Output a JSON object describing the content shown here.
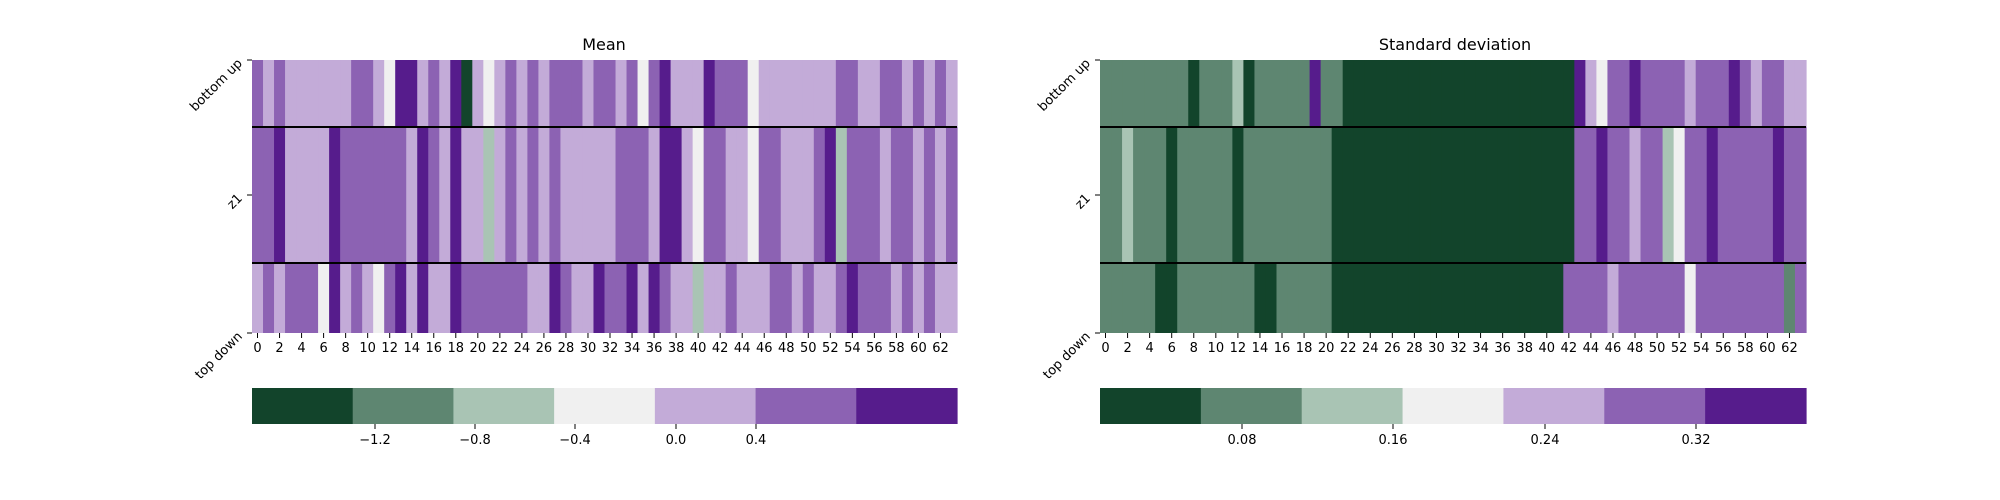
{
  "chart_data": [
    {
      "type": "heatmap",
      "title": "Mean",
      "rows": [
        "bottom up",
        "z1",
        "top down"
      ],
      "x_ticks": [
        0,
        2,
        4,
        6,
        8,
        10,
        12,
        14,
        16,
        18,
        20,
        22,
        24,
        26,
        28,
        30,
        32,
        34,
        36,
        38,
        40,
        42,
        44,
        46,
        48,
        50,
        52,
        54,
        56,
        58,
        60,
        62
      ],
      "level_colors": [
        "#12442b",
        "#5e8671",
        "#a9c4b4",
        "#f0f0f0",
        "#c3abd8",
        "#8c62b3",
        "#561c8c"
      ],
      "levels": [
        [
          5,
          4,
          5,
          4,
          4,
          4,
          4,
          4,
          4,
          5,
          5,
          4,
          3,
          6,
          6,
          4,
          5,
          4,
          6,
          0,
          4,
          3,
          4,
          5,
          4,
          5,
          4,
          5,
          5,
          5,
          4,
          5,
          5,
          4,
          5,
          3,
          5,
          6,
          4,
          4,
          4,
          6,
          5,
          5,
          5,
          3,
          4,
          4,
          4,
          4,
          4,
          4,
          4,
          5,
          5,
          4,
          4,
          5,
          5,
          4,
          5,
          4,
          5,
          4
        ],
        [
          5,
          5,
          6,
          4,
          4,
          4,
          4,
          6,
          5,
          5,
          5,
          5,
          5,
          5,
          4,
          6,
          5,
          4,
          6,
          4,
          4,
          2,
          4,
          5,
          4,
          5,
          4,
          5,
          4,
          4,
          4,
          4,
          4,
          5,
          5,
          5,
          4,
          6,
          6,
          4,
          3,
          5,
          5,
          4,
          4,
          3,
          5,
          5,
          4,
          4,
          4,
          5,
          6,
          2,
          5,
          5,
          5,
          4,
          5,
          5,
          4,
          5,
          4,
          5
        ],
        [
          4,
          5,
          4,
          5,
          5,
          5,
          3,
          6,
          4,
          5,
          4,
          3,
          5,
          6,
          4,
          6,
          4,
          4,
          6,
          5,
          5,
          5,
          5,
          5,
          5,
          4,
          4,
          6,
          5,
          4,
          4,
          6,
          5,
          5,
          6,
          4,
          6,
          5,
          4,
          4,
          2,
          4,
          4,
          5,
          4,
          4,
          4,
          5,
          5,
          4,
          5,
          4,
          4,
          5,
          6,
          5,
          5,
          5,
          4,
          5,
          4,
          5,
          4,
          4
        ]
      ],
      "colorbar_ticks": [
        "−1.2",
        "−0.8",
        "−0.4",
        "0.0",
        "0.4"
      ]
    },
    {
      "type": "heatmap",
      "title": "Standard deviation",
      "rows": [
        "bottom up",
        "z1",
        "top down"
      ],
      "x_ticks": [
        0,
        2,
        4,
        6,
        8,
        10,
        12,
        14,
        16,
        18,
        20,
        22,
        24,
        26,
        28,
        30,
        32,
        34,
        36,
        38,
        40,
        42,
        44,
        46,
        48,
        50,
        52,
        54,
        56,
        58,
        60,
        62
      ],
      "level_colors": [
        "#12442b",
        "#5e8671",
        "#a9c4b4",
        "#f0f0f0",
        "#c3abd8",
        "#8c62b3",
        "#561c8c"
      ],
      "levels": [
        [
          1,
          1,
          1,
          1,
          1,
          1,
          1,
          1,
          0,
          1,
          1,
          1,
          2,
          0,
          1,
          1,
          1,
          1,
          1,
          6,
          1,
          1,
          0,
          0,
          0,
          0,
          0,
          0,
          0,
          0,
          0,
          0,
          0,
          0,
          0,
          0,
          0,
          0,
          0,
          0,
          0,
          0,
          0,
          6,
          4,
          3,
          5,
          5,
          6,
          5,
          5,
          5,
          5,
          4,
          5,
          5,
          5,
          6,
          5,
          4,
          5,
          5,
          4,
          4
        ],
        [
          1,
          1,
          2,
          1,
          1,
          1,
          0,
          1,
          1,
          1,
          1,
          1,
          0,
          1,
          1,
          1,
          1,
          1,
          1,
          1,
          1,
          0,
          0,
          0,
          0,
          0,
          0,
          0,
          0,
          0,
          0,
          0,
          0,
          0,
          0,
          0,
          0,
          0,
          0,
          0,
          0,
          0,
          0,
          5,
          5,
          6,
          5,
          5,
          4,
          5,
          5,
          2,
          3,
          5,
          5,
          6,
          5,
          5,
          5,
          5,
          5,
          6,
          5,
          5
        ],
        [
          1,
          1,
          1,
          1,
          1,
          0,
          0,
          1,
          1,
          1,
          1,
          1,
          1,
          1,
          0,
          0,
          1,
          1,
          1,
          1,
          1,
          0,
          0,
          0,
          0,
          0,
          0,
          0,
          0,
          0,
          0,
          0,
          0,
          0,
          0,
          0,
          0,
          0,
          0,
          0,
          0,
          0,
          5,
          5,
          5,
          5,
          4,
          5,
          5,
          5,
          5,
          5,
          5,
          3,
          5,
          5,
          5,
          5,
          5,
          5,
          5,
          5,
          1,
          5
        ]
      ],
      "colorbar_ticks": [
        "0.08",
        "0.16",
        "0.24",
        "0.32"
      ]
    }
  ]
}
